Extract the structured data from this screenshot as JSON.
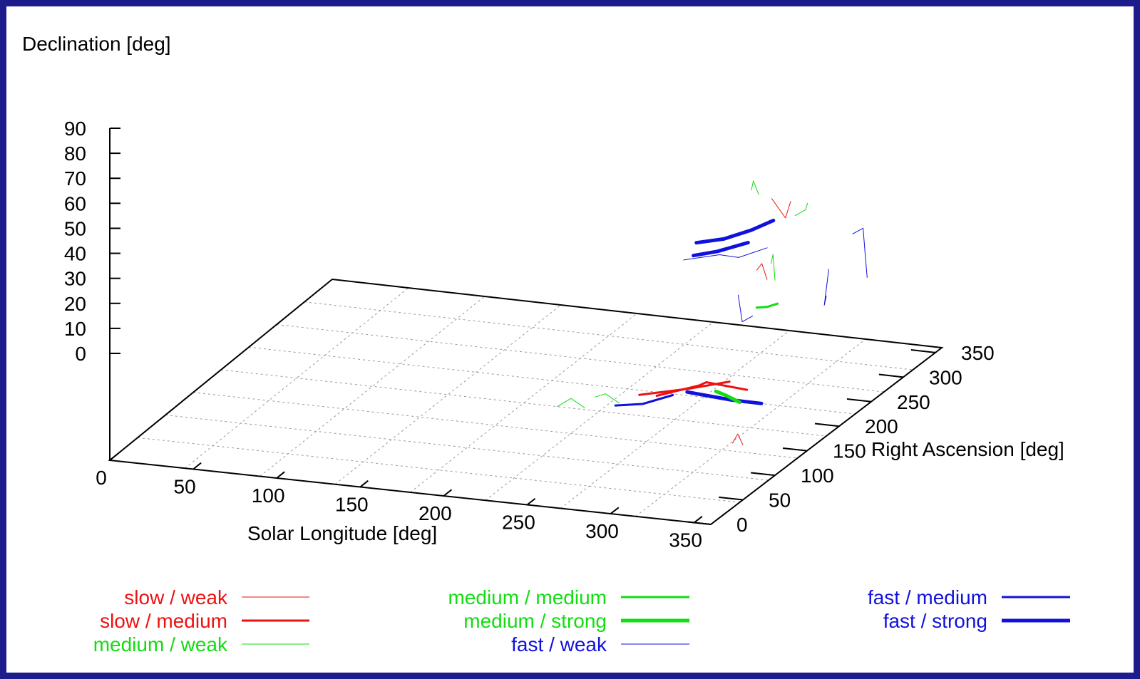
{
  "colors": {
    "slow": "#ee1111",
    "medium": "#11dd11",
    "fast": "#1111dd",
    "border": "#1c1c8c"
  },
  "chart_data": {
    "type": "scatter",
    "plot_kind": "3d-line-fragments",
    "zlabel": "Declination [deg]",
    "xlabel": "Solar Longitude [deg]",
    "ylabel": "Right Ascension [deg]",
    "xlim": [
      0,
      360
    ],
    "ylim": [
      0,
      360
    ],
    "zlim": [
      0,
      90
    ],
    "x_ticks": [
      "0",
      "50",
      "100",
      "150",
      "200",
      "250",
      "300",
      "350"
    ],
    "y_ticks": [
      "0",
      "50",
      "100",
      "150",
      "200",
      "250",
      "300",
      "350"
    ],
    "z_ticks": [
      "0",
      "10",
      "20",
      "30",
      "40",
      "50",
      "60",
      "70",
      "80",
      "90"
    ],
    "grid": true,
    "legend_position": "bottom",
    "legend": [
      {
        "label": "slow / weak",
        "color": "#ee1111",
        "weight": 1
      },
      {
        "label": "slow / medium",
        "color": "#ee1111",
        "weight": 3
      },
      {
        "label": "medium / weak",
        "color": "#11dd11",
        "weight": 1
      },
      {
        "label": "medium / medium",
        "color": "#11dd11",
        "weight": 3
      },
      {
        "label": "medium / strong",
        "color": "#11dd11",
        "weight": 5
      },
      {
        "label": "fast / weak",
        "color": "#1111dd",
        "weight": 1
      },
      {
        "label": "fast / medium",
        "color": "#1111dd",
        "weight": 3
      },
      {
        "label": "fast / strong",
        "color": "#1111dd",
        "weight": 5
      }
    ],
    "series": [
      {
        "legend_index": 1,
        "points": [
          [
            258,
            183,
            8
          ],
          [
            290,
            165,
            18
          ],
          [
            300,
            150,
            23
          ],
          [
            328,
            140,
            24
          ]
        ]
      },
      {
        "legend_index": 1,
        "points": [
          [
            245,
            190,
            6
          ],
          [
            280,
            175,
            14
          ],
          [
            310,
            160,
            22
          ]
        ]
      },
      {
        "legend_index": 7,
        "points": [
          [
            230,
            320,
            40
          ],
          [
            250,
            310,
            45
          ],
          [
            270,
            300,
            52
          ],
          [
            285,
            295,
            58
          ]
        ]
      },
      {
        "legend_index": 7,
        "points": [
          [
            232,
            310,
            37
          ],
          [
            250,
            300,
            42
          ],
          [
            270,
            295,
            48
          ]
        ]
      },
      {
        "legend_index": 7,
        "points": [
          [
            300,
            120,
            25
          ],
          [
            330,
            110,
            26
          ],
          [
            350,
            105,
            27
          ]
        ]
      },
      {
        "legend_index": 6,
        "points": [
          [
            280,
            60,
            30
          ],
          [
            300,
            50,
            34
          ],
          [
            320,
            45,
            40
          ]
        ]
      },
      {
        "legend_index": 5,
        "points": [
          [
            215,
            340,
            28
          ],
          [
            240,
            330,
            34
          ],
          [
            255,
            320,
            36
          ],
          [
            270,
            325,
            40
          ]
        ]
      },
      {
        "legend_index": 5,
        "points": [
          [
            330,
            300,
            55
          ],
          [
            340,
            290,
            60
          ],
          [
            345,
            280,
            52
          ],
          [
            350,
            270,
            45
          ]
        ]
      },
      {
        "legend_index": 5,
        "points": [
          [
            300,
            200,
            48
          ],
          [
            310,
            180,
            42
          ],
          [
            320,
            170,
            47
          ]
        ]
      },
      {
        "legend_index": 5,
        "points": [
          [
            350,
            210,
            60
          ],
          [
            355,
            190,
            50
          ],
          [
            360,
            180,
            56
          ]
        ]
      },
      {
        "legend_index": 4,
        "points": [
          [
            340,
            60,
            40
          ],
          [
            350,
            50,
            41
          ],
          [
            360,
            45,
            40
          ]
        ]
      },
      {
        "legend_index": 3,
        "points": [
          [
            330,
            150,
            55
          ],
          [
            340,
            140,
            58
          ],
          [
            350,
            130,
            62
          ]
        ]
      },
      {
        "legend_index": 2,
        "points": [
          [
            270,
            300,
            68
          ],
          [
            275,
            290,
            74
          ],
          [
            280,
            285,
            70
          ]
        ]
      },
      {
        "legend_index": 2,
        "points": [
          [
            330,
            210,
            80
          ],
          [
            340,
            200,
            85
          ],
          [
            345,
            190,
            90
          ]
        ]
      },
      {
        "legend_index": 2,
        "points": [
          [
            350,
            120,
            80
          ],
          [
            355,
            110,
            86
          ],
          [
            360,
            100,
            78
          ]
        ]
      },
      {
        "legend_index": 2,
        "points": [
          [
            230,
            160,
            10
          ],
          [
            240,
            150,
            14
          ],
          [
            250,
            145,
            12
          ]
        ]
      },
      {
        "legend_index": 2,
        "points": [
          [
            200,
            180,
            0
          ],
          [
            210,
            175,
            5
          ],
          [
            220,
            170,
            3
          ]
        ]
      },
      {
        "legend_index": 0,
        "points": [
          [
            320,
            200,
            88
          ],
          [
            330,
            195,
            82
          ],
          [
            335,
            190,
            90
          ]
        ]
      },
      {
        "legend_index": 0,
        "points": [
          [
            330,
            150,
            70
          ],
          [
            335,
            145,
            74
          ],
          [
            340,
            140,
            69
          ]
        ]
      },
      {
        "legend_index": 0,
        "points": [
          [
            350,
            60,
            20
          ],
          [
            355,
            55,
            25
          ],
          [
            360,
            50,
            22
          ]
        ]
      }
    ]
  }
}
